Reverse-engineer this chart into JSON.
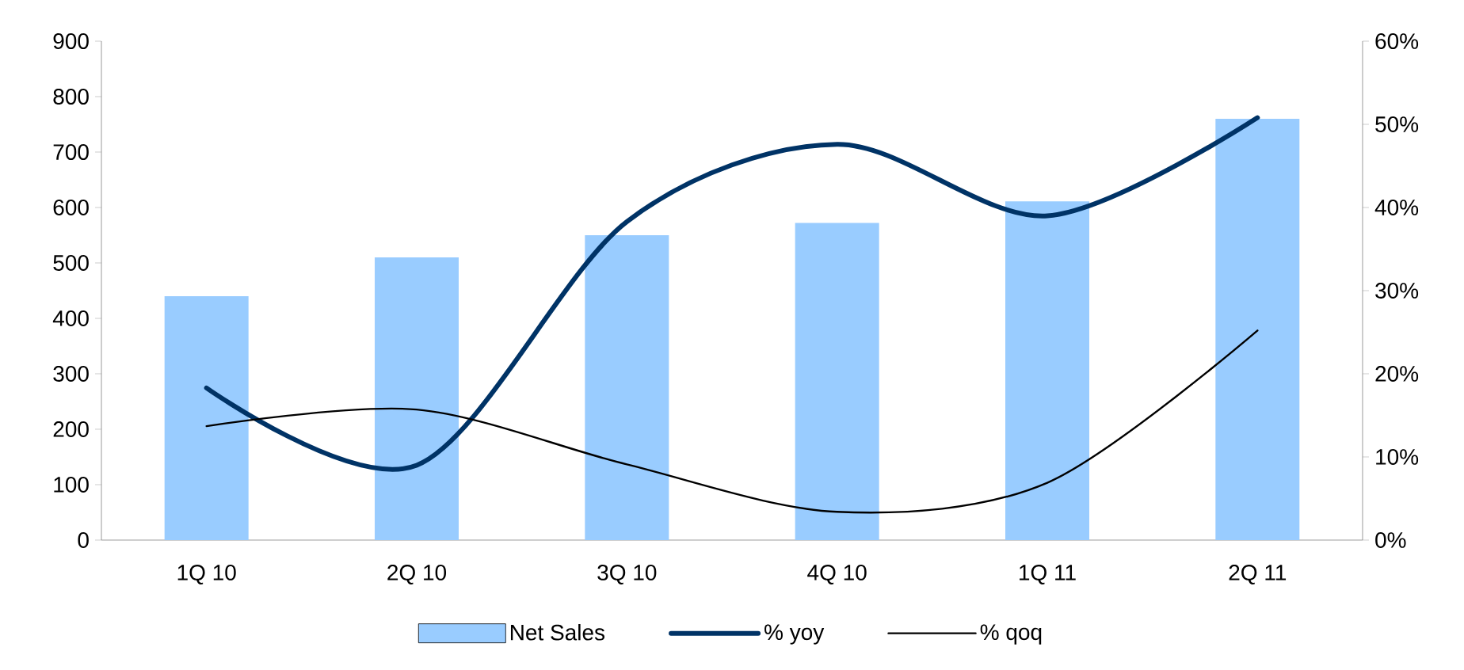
{
  "chart_data": {
    "type": "bar",
    "categories": [
      "1Q 10",
      "2Q 10",
      "3Q 10",
      "4Q 10",
      "1Q 11",
      "2Q 11"
    ],
    "series": [
      {
        "name": "Net Sales",
        "color": "#99ccff",
        "values": [
          440,
          510,
          550,
          572,
          611,
          760
        ]
      },
      {
        "name": "% yoy",
        "type": "line",
        "axis": "y2",
        "color": "#003366",
        "values": [
          18.3,
          9,
          38.3,
          47.6,
          39,
          50.8
        ]
      },
      {
        "name": "% qoq",
        "type": "line",
        "axis": "y2",
        "color": "#000000",
        "values": [
          13.7,
          15.7,
          9.1,
          3.4,
          6.9,
          25.2
        ]
      }
    ],
    "ylim": [
      0,
      900
    ],
    "yticks": [
      0,
      100,
      200,
      300,
      400,
      500,
      600,
      700,
      800,
      900
    ],
    "y2lim": [
      0,
      60
    ],
    "y2ticks": [
      {
        "value": 0,
        "label": "0%"
      },
      {
        "value": 10,
        "label": "10%"
      },
      {
        "value": 20,
        "label": "20%"
      },
      {
        "value": 30,
        "label": "30%"
      },
      {
        "value": 40,
        "label": "40%"
      },
      {
        "value": 50,
        "label": "50%"
      },
      {
        "value": 60,
        "label": "60%"
      }
    ],
    "legend": "bottom",
    "grid": false,
    "marker": "none"
  }
}
